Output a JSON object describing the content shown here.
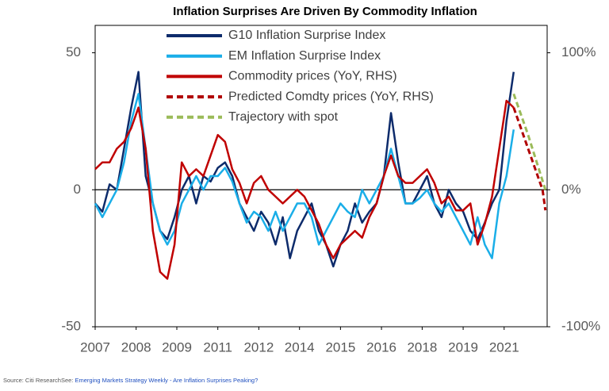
{
  "chart_data": {
    "type": "line",
    "title": "Inflation Surprises Are Driven By Commodity Inflation",
    "x": [
      2007,
      2007.25,
      2007.5,
      2007.75,
      2008,
      2008.25,
      2008.5,
      2008.75,
      2009,
      2009.25,
      2009.5,
      2009.75,
      2010,
      2010.25,
      2010.5,
      2010.75,
      2011,
      2011.25,
      2011.5,
      2011.75,
      2012,
      2012.25,
      2012.5,
      2012.75,
      2013,
      2013.25,
      2013.5,
      2013.75,
      2014,
      2014.25,
      2014.5,
      2014.75,
      2015,
      2015.25,
      2015.5,
      2015.75,
      2016,
      2016.25,
      2016.5,
      2016.75,
      2017,
      2017.25,
      2017.5,
      2017.75,
      2018,
      2018.25,
      2018.5,
      2018.75,
      2019,
      2019.25,
      2019.5,
      2019.75,
      2020,
      2020.25,
      2020.5,
      2020.75,
      2021,
      2021.25,
      2021.5
    ],
    "series": [
      {
        "name": "G10 Inflation Surprise Index",
        "color": "#0d2b6b",
        "axis": "y",
        "dashed": false,
        "values": [
          -5,
          -8,
          2,
          0,
          15,
          30,
          43,
          5,
          -5,
          -15,
          -18,
          -10,
          0,
          5,
          -5,
          5,
          3,
          8,
          10,
          5,
          -5,
          -10,
          -15,
          -8,
          -12,
          -20,
          -10,
          -25,
          -15,
          -10,
          -5,
          -15,
          -20,
          -28,
          -20,
          -15,
          -5,
          -12,
          -8,
          -5,
          5,
          28,
          10,
          -5,
          -5,
          0,
          5,
          -5,
          -10,
          0,
          -5,
          -8,
          -15,
          -18,
          -12,
          -5,
          0,
          25,
          43
        ]
      },
      {
        "name": "EM Inflation Surprise Index",
        "color": "#1aaee8",
        "axis": "y",
        "dashed": false,
        "values": [
          -5,
          -10,
          -5,
          0,
          10,
          25,
          35,
          15,
          -5,
          -15,
          -20,
          -15,
          -5,
          0,
          5,
          0,
          5,
          5,
          8,
          3,
          -5,
          -12,
          -8,
          -10,
          -15,
          -8,
          -15,
          -10,
          -5,
          -5,
          -10,
          -20,
          -15,
          -10,
          -5,
          -8,
          -10,
          0,
          -5,
          0,
          5,
          15,
          5,
          -5,
          -5,
          -3,
          0,
          -5,
          -8,
          -5,
          -10,
          -15,
          -20,
          -10,
          -20,
          -25,
          -5,
          5,
          22
        ]
      },
      {
        "name": "Commodity prices (YoY, RHS)",
        "color": "#c00000",
        "axis": "y2",
        "dashed": false,
        "values": [
          15,
          20,
          20,
          30,
          35,
          45,
          60,
          30,
          -30,
          -60,
          -65,
          -40,
          20,
          10,
          15,
          10,
          25,
          40,
          35,
          15,
          5,
          -10,
          5,
          10,
          0,
          -5,
          -10,
          -5,
          0,
          -5,
          -15,
          -25,
          -40,
          -50,
          -40,
          -35,
          -30,
          -35,
          -20,
          -10,
          10,
          25,
          10,
          5,
          5,
          10,
          15,
          5,
          -10,
          -5,
          -15,
          -15,
          -10,
          -40,
          -25,
          -5,
          30,
          65,
          60
        ]
      },
      {
        "name": "Predicted Comdty prices (YoY, RHS)",
        "color": "#b00000",
        "axis": "y2",
        "dashed": true,
        "x": [
          2021.5,
          2021.75,
          2022,
          2022.25,
          2022.5,
          2022.6
        ],
        "values": [
          60,
          45,
          30,
          15,
          0,
          -15
        ]
      },
      {
        "name": "Trajectory with spot",
        "color": "#9bbb59",
        "axis": "y2",
        "dashed": true,
        "x": [
          2021.5,
          2022,
          2022.6
        ],
        "values": [
          70,
          40,
          0
        ]
      }
    ],
    "xlim": [
      2007,
      2022.66
    ],
    "xticks": [
      {
        "value": 2007,
        "label": "2007"
      },
      {
        "value": 2008.42,
        "label": "2008"
      },
      {
        "value": 2009.83,
        "label": "2009"
      },
      {
        "value": 2011.25,
        "label": "2011"
      },
      {
        "value": 2012.67,
        "label": "2012"
      },
      {
        "value": 2014.08,
        "label": "2014"
      },
      {
        "value": 2015.5,
        "label": "2015"
      },
      {
        "value": 2016.92,
        "label": "2016"
      },
      {
        "value": 2018.33,
        "label": "2018"
      },
      {
        "value": 2019.75,
        "label": "2019"
      },
      {
        "value": 2021.17,
        "label": "2021"
      }
    ],
    "ylim": [
      -50,
      60
    ],
    "yticks": [
      -50,
      0,
      50
    ],
    "y2lim": [
      -100,
      120
    ],
    "y2ticks": [
      {
        "value": -100,
        "label": "-100%"
      },
      {
        "value": 0,
        "label": "0%"
      },
      {
        "value": 100,
        "label": "100%"
      }
    ],
    "zero_line": true,
    "source": {
      "text": "Source: Citi ResearchSee: ",
      "link": "Emerging Markets Strategy Weekly - Are Inflation Surprises Peaking?"
    }
  }
}
